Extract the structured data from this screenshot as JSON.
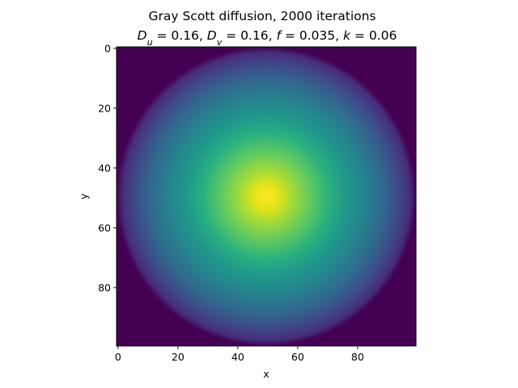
{
  "chart_data": {
    "type": "heatmap",
    "title": "Gray Scott diffusion, 2000 iterations",
    "subtitle": {
      "du_symbol": "D",
      "du_sub": "u",
      "du_value": " = 0.16, ",
      "dv_symbol": "D",
      "dv_sub": "v",
      "dv_value": " = 0.16, ",
      "f_symbol": "f",
      "f_value": " = 0.035, ",
      "k_symbol": "k",
      "k_value": " = 0.06"
    },
    "xlabel": "x",
    "ylabel": "y",
    "xlim": [
      0,
      100
    ],
    "ylim": [
      100,
      0
    ],
    "xticks": [
      "0",
      "20",
      "40",
      "60",
      "80"
    ],
    "yticks": [
      "0",
      "20",
      "40",
      "60",
      "80"
    ],
    "grid_size": [
      100,
      100
    ],
    "colormap": "viridis",
    "peak": {
      "x": 50,
      "y": 50,
      "value": 1.0
    },
    "edge_value": 0.0,
    "grid": false
  }
}
